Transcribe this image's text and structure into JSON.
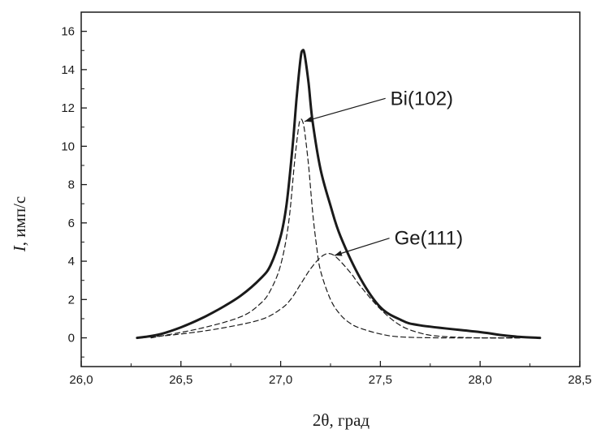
{
  "chart_data": {
    "type": "line",
    "xlabel": "2θ, град",
    "ylabel_symbol": "I",
    "ylabel_rest": ", имп/с",
    "xlim": [
      26.0,
      28.5
    ],
    "ylim": [
      -1.5,
      17.0
    ],
    "x_ticks": [
      26.0,
      26.5,
      27.0,
      27.5,
      28.0,
      28.5
    ],
    "x_tick_labels": [
      "26,0",
      "26,5",
      "27,0",
      "27,5",
      "28,0",
      "28,5"
    ],
    "y_ticks": [
      0,
      2,
      4,
      6,
      8,
      10,
      12,
      14,
      16
    ],
    "y_tick_labels": [
      "0",
      "2",
      "4",
      "6",
      "8",
      "10",
      "12",
      "14",
      "16"
    ],
    "grid": false,
    "series": [
      {
        "style": "solid",
        "x": [
          26.28,
          26.32,
          26.4,
          26.5,
          26.6,
          26.7,
          26.8,
          26.9,
          26.95,
          27.0,
          27.03,
          27.06,
          27.08,
          27.1,
          27.11,
          27.12,
          27.14,
          27.16,
          27.2,
          27.25,
          27.3,
          27.4,
          27.5,
          27.6,
          27.7,
          28.0,
          28.1,
          28.2,
          28.3
        ],
        "y": [
          0.0,
          0.05,
          0.2,
          0.55,
          1.0,
          1.55,
          2.2,
          3.1,
          3.8,
          5.3,
          7.0,
          10.0,
          12.5,
          14.6,
          15.0,
          14.8,
          13.3,
          11.3,
          8.8,
          6.9,
          5.3,
          3.1,
          1.6,
          0.95,
          0.65,
          0.3,
          0.15,
          0.05,
          0.0
        ]
      },
      {
        "name": "Bi(102)",
        "style": "dashed",
        "x": [
          26.35,
          26.6,
          26.8,
          26.9,
          26.95,
          27.0,
          27.04,
          27.07,
          27.09,
          27.1,
          27.11,
          27.12,
          27.14,
          27.16,
          27.18,
          27.2,
          27.25,
          27.3,
          27.35,
          27.4,
          27.5,
          27.6,
          27.8,
          28.0,
          28.2
        ],
        "y": [
          0.0,
          0.5,
          1.1,
          1.8,
          2.5,
          3.8,
          6.0,
          9.2,
          11.0,
          11.4,
          11.3,
          10.8,
          9.0,
          6.6,
          4.8,
          3.5,
          2.0,
          1.2,
          0.75,
          0.5,
          0.2,
          0.05,
          0.0,
          0.0,
          0.0
        ]
      },
      {
        "name": "Ge(111)",
        "style": "dashed",
        "x": [
          26.3,
          26.5,
          26.7,
          26.9,
          27.0,
          27.05,
          27.1,
          27.15,
          27.2,
          27.24,
          27.28,
          27.35,
          27.4,
          27.5,
          27.6,
          27.7,
          27.8,
          28.0,
          28.2
        ],
        "y": [
          0.0,
          0.2,
          0.5,
          0.95,
          1.5,
          2.0,
          2.8,
          3.6,
          4.2,
          4.4,
          4.2,
          3.4,
          2.7,
          1.5,
          0.65,
          0.25,
          0.08,
          0.0,
          0.0
        ]
      }
    ],
    "annotations": [
      {
        "text": "Bi(102)",
        "x": 27.55,
        "y": 12.5,
        "target_x": 27.12,
        "target_y": 11.3
      },
      {
        "text": "Ge(111)",
        "x": 27.57,
        "y": 5.2,
        "target_x": 27.27,
        "target_y": 4.3
      }
    ]
  }
}
